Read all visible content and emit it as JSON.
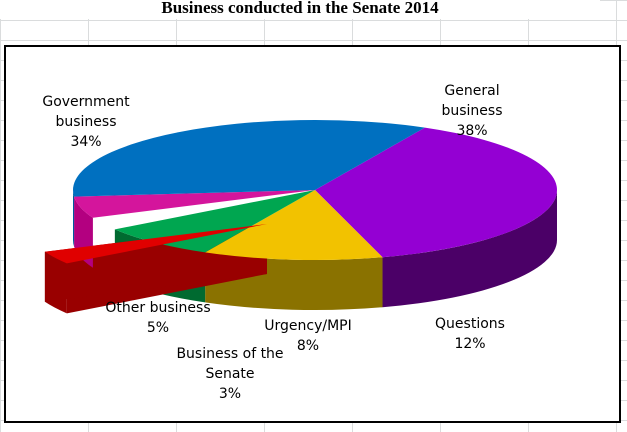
{
  "chart_data": {
    "type": "pie",
    "title": "Business conducted in the Senate 2014",
    "slices": [
      {
        "label": "General business",
        "label_lines": [
          "General",
          "business"
        ],
        "value": 38,
        "value_label": "38%",
        "color": "#9400d3",
        "dark": "#4b0067"
      },
      {
        "label": "Questions",
        "label_lines": [
          "Questions"
        ],
        "value": 12,
        "value_label": "12%",
        "color": "#f2c200",
        "dark": "#8a7200"
      },
      {
        "label": "Urgency/MPI",
        "label_lines": [
          "Urgency/MPI"
        ],
        "value": 8,
        "value_label": "8%",
        "color": "#00a650",
        "dark": "#006a30"
      },
      {
        "label": "Business of the Senate",
        "label_lines": [
          "Business of the",
          "Senate"
        ],
        "value": 3,
        "value_label": "3%",
        "color": "#e00000",
        "dark": "#990000"
      },
      {
        "label": "Other business",
        "label_lines": [
          "Other business"
        ],
        "value": 5,
        "value_label": "5%",
        "color": "#d4159c",
        "dark": "#b30080"
      },
      {
        "label": "Government business",
        "label_lines": [
          "Government",
          "business"
        ],
        "value": 34,
        "value_label": "34%",
        "color": "#0070c0",
        "dark": "#005a9c"
      }
    ]
  }
}
